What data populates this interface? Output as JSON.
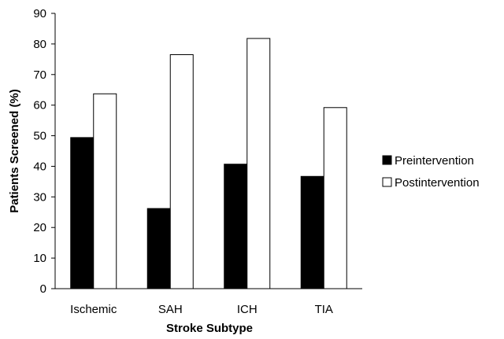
{
  "chart_data": {
    "type": "bar",
    "categories": [
      "Ischemic",
      "SAH",
      "ICH",
      "TIA"
    ],
    "series": [
      {
        "name": "Preintervention",
        "values": [
          49.4,
          26.2,
          40.7,
          36.7
        ],
        "color": "#000000"
      },
      {
        "name": "Postintervention",
        "values": [
          63.7,
          76.5,
          81.8,
          59.2
        ],
        "color": "#ffffff"
      }
    ],
    "title": "",
    "xlabel": "Stroke Subtype",
    "ylabel": "Patients Screened (%)",
    "ylim": [
      0,
      90
    ],
    "yticks": [
      "0",
      "10",
      "20",
      "30",
      "40",
      "50",
      "60",
      "70",
      "80",
      "90"
    ],
    "grid": false,
    "legend_position": "right"
  }
}
